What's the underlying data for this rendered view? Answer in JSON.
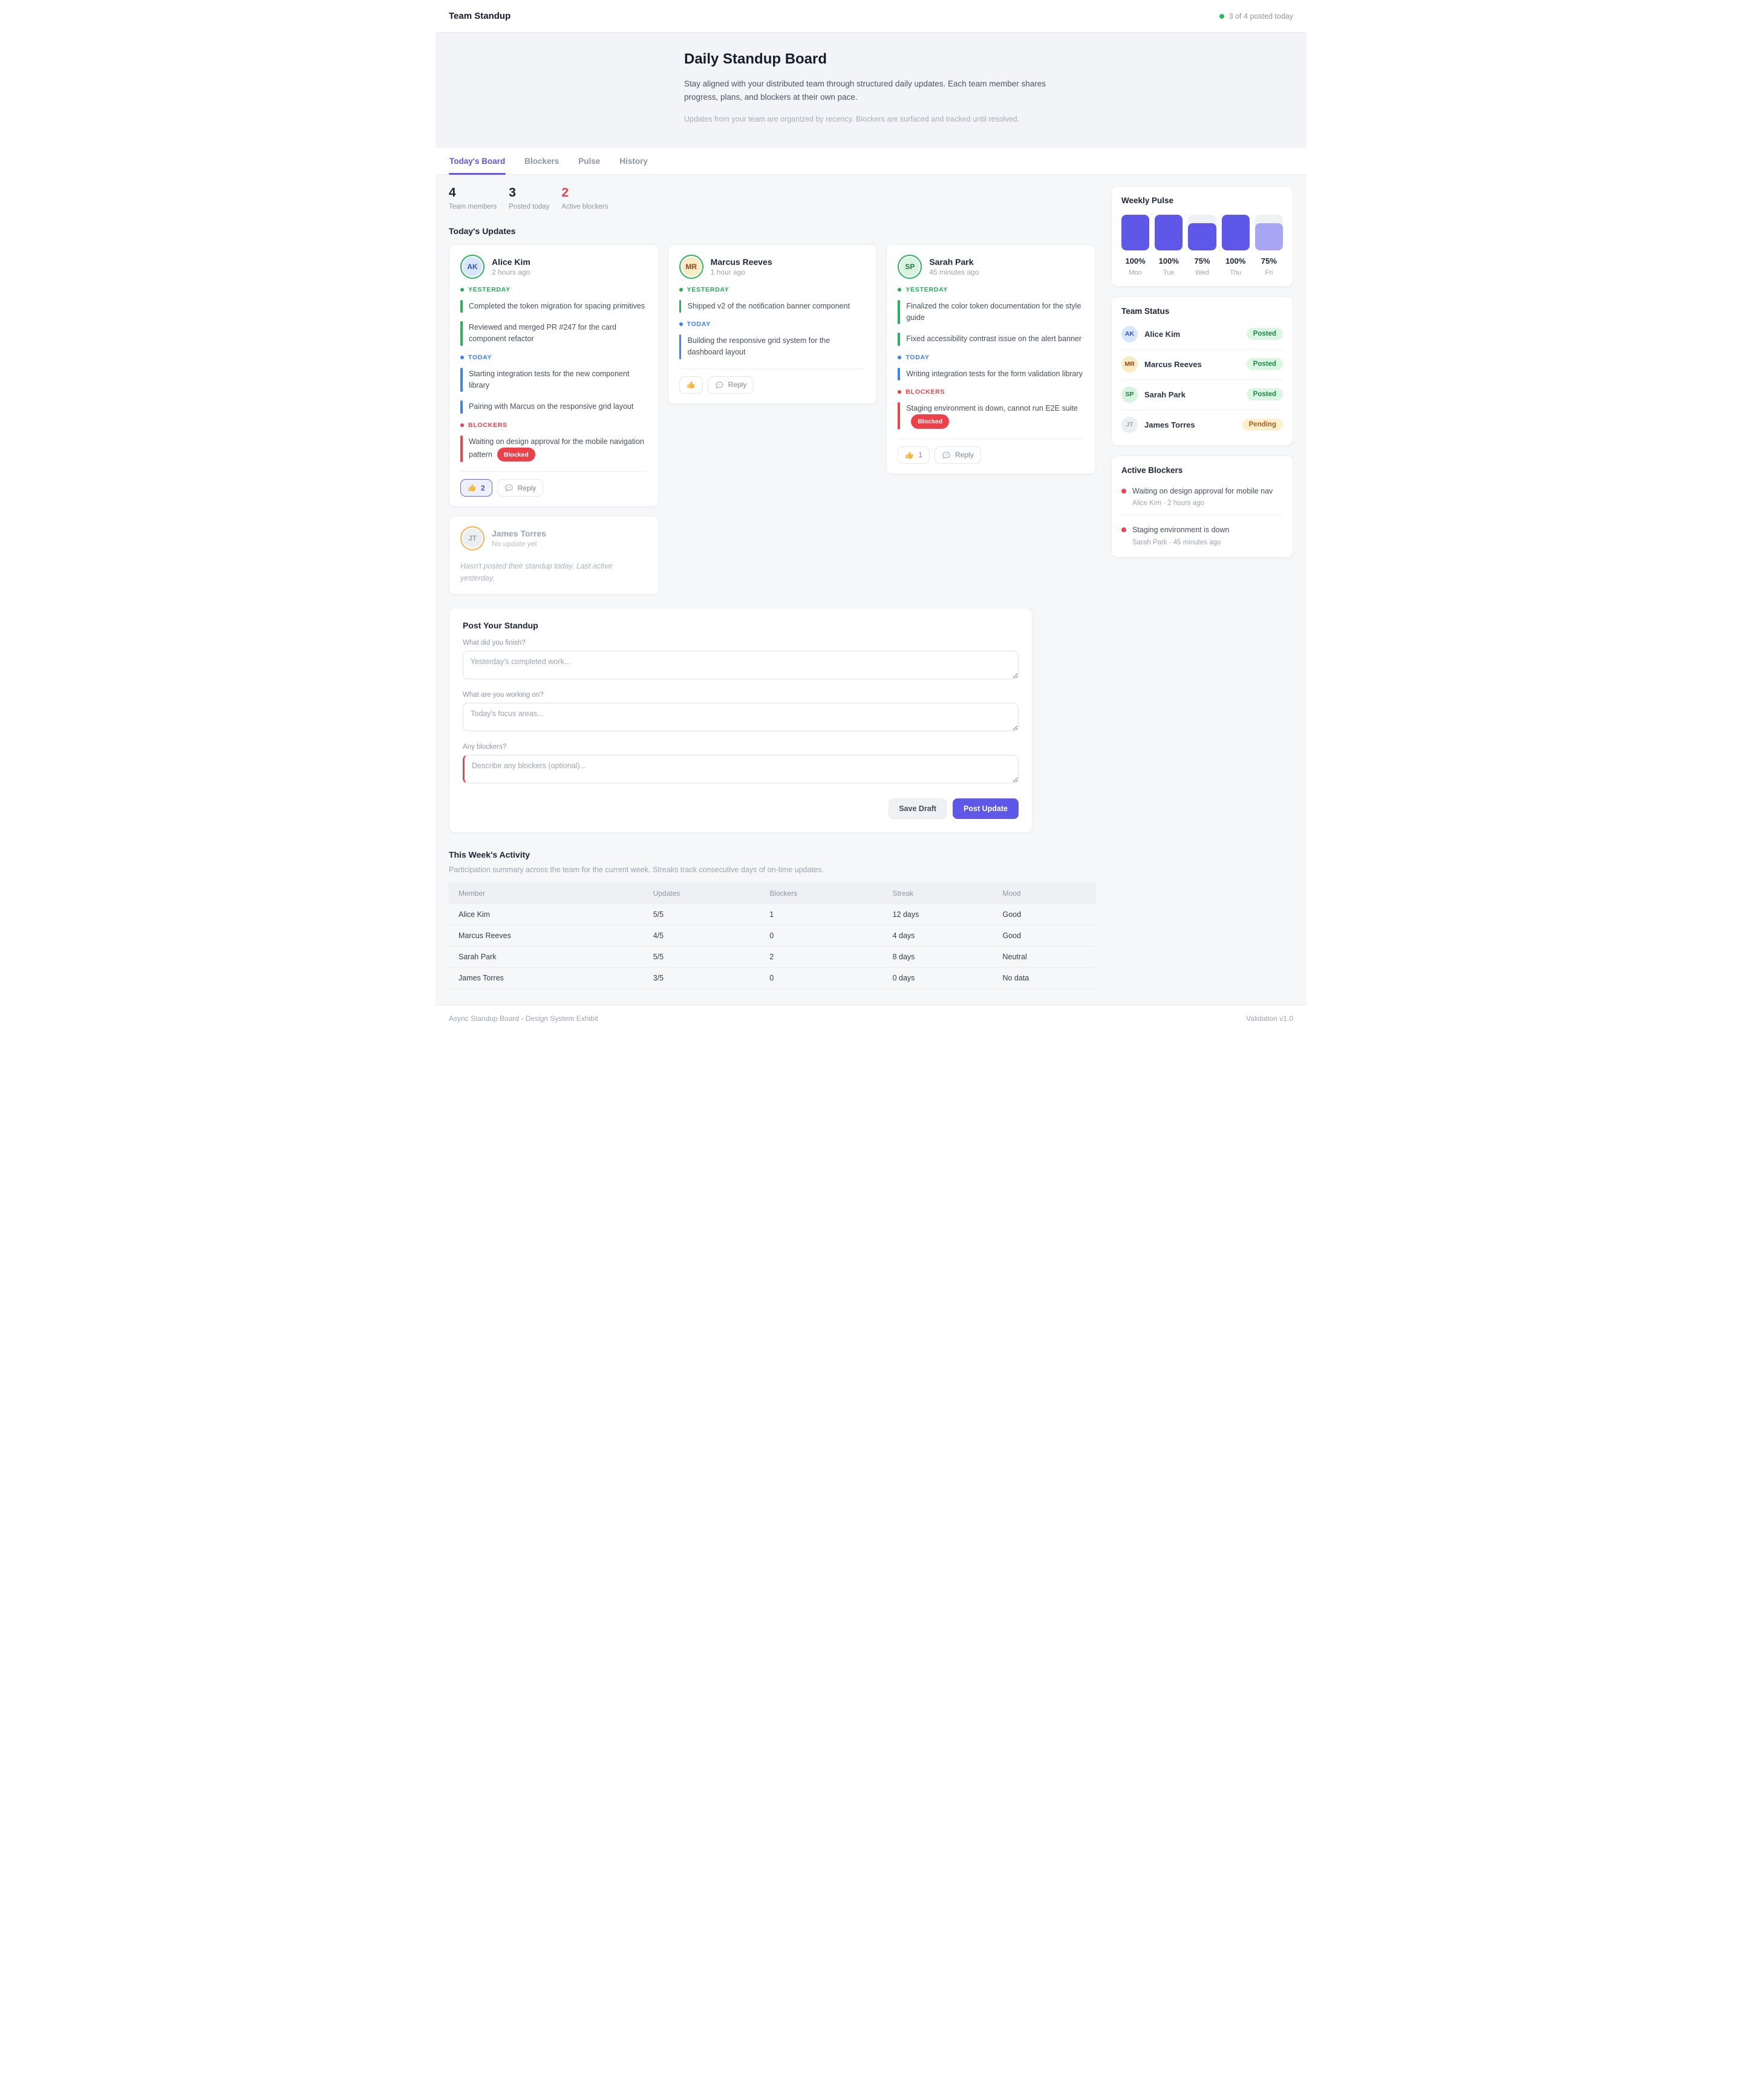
{
  "header": {
    "title": "Team Standup",
    "status": "3 of 4 posted today"
  },
  "hero": {
    "title": "Daily Standup Board",
    "description": "Stay aligned with your distributed team through structured daily updates. Each team member shares progress, plans, and blockers at their own pace.",
    "note": "Updates from your team are organized by recency. Blockers are surfaced and tracked until resolved."
  },
  "tabs": [
    {
      "label": "Today's Board",
      "active": true
    },
    {
      "label": "Blockers",
      "active": false
    },
    {
      "label": "Pulse",
      "active": false
    },
    {
      "label": "History",
      "active": false
    }
  ],
  "stats": [
    {
      "value": "4",
      "label": "Team members",
      "tone": "dark"
    },
    {
      "value": "3",
      "label": "Posted today",
      "tone": "dark"
    },
    {
      "value": "2",
      "label": "Active blockers",
      "tone": "red"
    }
  ],
  "board": {
    "heading": "Today's Updates"
  },
  "cards": [
    {
      "name": "Alice Kim",
      "initials": "AK",
      "time": "2 hours ago",
      "avatar": {
        "bg": "#d8e6fb",
        "fg": "#2f53c0",
        "ring": "green"
      },
      "sections": [
        {
          "kind": "yesterday",
          "label": "YESTERDAY",
          "items": [
            {
              "text": "Completed the token migration for spacing primitives"
            },
            {
              "text": "Reviewed and merged PR #247 for the card component refactor"
            }
          ]
        },
        {
          "kind": "today",
          "label": "TODAY",
          "items": [
            {
              "text": "Starting integration tests for the new component library"
            },
            {
              "text": "Pairing with Marcus on the responsive grid layout"
            }
          ]
        },
        {
          "kind": "blocker",
          "label": "BLOCKERS",
          "items": [
            {
              "text": "Waiting on design approval for the mobile navigation pattern",
              "badge": "Blocked"
            }
          ]
        }
      ],
      "reactions": [
        {
          "icon": "thumbs-up",
          "count": "2",
          "active": true
        },
        {
          "icon": "reply",
          "label": "Reply",
          "active": false
        }
      ]
    },
    {
      "name": "Marcus Reeves",
      "initials": "MR",
      "time": "1 hour ago",
      "avatar": {
        "bg": "#f8ecc4",
        "fg": "#9a421c",
        "ring": "green"
      },
      "sections": [
        {
          "kind": "yesterday",
          "label": "YESTERDAY",
          "items": [
            {
              "text": "Shipped v2 of the notification banner component"
            }
          ]
        },
        {
          "kind": "today",
          "label": "TODAY",
          "items": [
            {
              "text": "Building the responsive grid system for the dashboard layout"
            }
          ]
        }
      ],
      "reactions": [
        {
          "icon": "thumbs-up",
          "count": "",
          "active": false
        },
        {
          "icon": "reply",
          "label": "Reply",
          "active": false
        }
      ]
    },
    {
      "name": "Sarah Park",
      "initials": "SP",
      "time": "45 minutes ago",
      "avatar": {
        "bg": "#d8f3e0",
        "fg": "#1d7a44",
        "ring": "green"
      },
      "sections": [
        {
          "kind": "yesterday",
          "label": "YESTERDAY",
          "items": [
            {
              "text": "Finalized the color token documentation for the style guide"
            },
            {
              "text": "Fixed accessibility contrast issue on the alert banner"
            }
          ]
        },
        {
          "kind": "today",
          "label": "TODAY",
          "items": [
            {
              "text": "Writing integration tests for the form validation library"
            }
          ]
        },
        {
          "kind": "blocker",
          "label": "BLOCKERS",
          "items": [
            {
              "text": "Staging environment is down, cannot run E2E suite",
              "badge": "Blocked"
            }
          ]
        }
      ],
      "reactions": [
        {
          "icon": "thumbs-up",
          "count": "1",
          "active": false
        },
        {
          "icon": "reply",
          "label": "Reply",
          "active": false
        }
      ]
    }
  ],
  "pending": {
    "name": "James Torres",
    "initials": "JT",
    "time": "No update yet",
    "avatar": {
      "bg": "#eceef1",
      "fg": "#9aa3ae",
      "ring": "amber"
    },
    "note": "Hasn't posted their standup today. Last active yesterday."
  },
  "form": {
    "title": "Post Your Standup",
    "fields": [
      {
        "label": "What did you finish?",
        "placeholder": "Yesterday's completed work...",
        "accent": "none"
      },
      {
        "label": "What are you working on?",
        "placeholder": "Today's focus areas...",
        "accent": "none"
      },
      {
        "label": "Any blockers?",
        "placeholder": "Describe any blockers (optional)...",
        "accent": "red"
      }
    ],
    "save_label": "Save Draft",
    "post_label": "Post Update"
  },
  "sidebar": {
    "weekly_pulse": {
      "title": "Weekly Pulse",
      "bars": [
        {
          "day": "Mon",
          "value": "100%",
          "pct": 100,
          "light": false
        },
        {
          "day": "Tue",
          "value": "100%",
          "pct": 100,
          "light": false
        },
        {
          "day": "Wed",
          "value": "75%",
          "pct": 75,
          "light": false
        },
        {
          "day": "Thu",
          "value": "100%",
          "pct": 100,
          "light": false
        },
        {
          "day": "Fri",
          "value": "75%",
          "pct": 75,
          "light": true
        }
      ]
    },
    "team_status": {
      "title": "Team Status",
      "rows": [
        {
          "initials": "AK",
          "name": "Alice Kim",
          "badge": "Posted",
          "tone": "posted",
          "bg": "#d8e6fb",
          "fg": "#2f53c0"
        },
        {
          "initials": "MR",
          "name": "Marcus Reeves",
          "badge": "Posted",
          "tone": "posted",
          "bg": "#f8ecc4",
          "fg": "#9a421c"
        },
        {
          "initials": "SP",
          "name": "Sarah Park",
          "badge": "Posted",
          "tone": "posted",
          "bg": "#d8f3e0",
          "fg": "#1d7a44"
        },
        {
          "initials": "JT",
          "name": "James Torres",
          "badge": "Pending",
          "tone": "pending",
          "bg": "#eceef1",
          "fg": "#9aa3ae"
        }
      ]
    },
    "active_blockers": {
      "title": "Active Blockers",
      "items": [
        {
          "text": "Waiting on design approval for mobile nav",
          "meta": "Alice Kim · 2 hours ago"
        },
        {
          "text": "Staging environment is down",
          "meta": "Sarah Park · 45 minutes ago"
        }
      ]
    }
  },
  "activity": {
    "title": "This Week's Activity",
    "subtitle": "Participation summary across the team for the current week. Streaks track consecutive days of on-time updates.",
    "columns": [
      "Member",
      "Updates",
      "Blockers",
      "Streak",
      "Mood"
    ],
    "rows": [
      {
        "member": "Alice Kim",
        "updates": "5/5",
        "blockers": "1",
        "streak": "12 days",
        "mood": "Good",
        "mood_tone": "good"
      },
      {
        "member": "Marcus Reeves",
        "updates": "4/5",
        "blockers": "0",
        "streak": "4 days",
        "mood": "Good",
        "mood_tone": "good"
      },
      {
        "member": "Sarah Park",
        "updates": "5/5",
        "blockers": "2",
        "streak": "8 days",
        "mood": "Neutral",
        "mood_tone": "neutral"
      },
      {
        "member": "James Torres",
        "updates": "3/5",
        "blockers": "0",
        "streak": "0 days",
        "mood": "No data",
        "mood_tone": "none"
      }
    ]
  },
  "footer": {
    "left": "Async Standup Board - Design System Exhibit",
    "right": "Validation v1.0"
  }
}
